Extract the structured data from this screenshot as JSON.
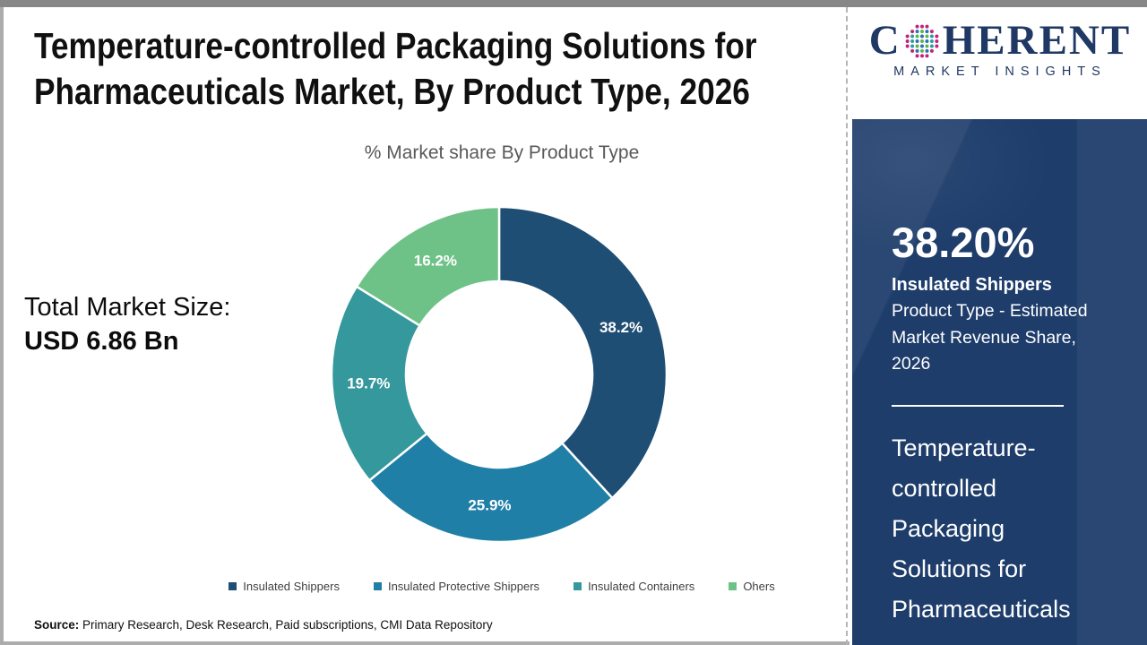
{
  "header": {
    "title_lines": [
      "Temperature-controlled Packaging Solutions for",
      "Pharmaceuticals Market, By Product Type, 2026"
    ],
    "subtitle": "% Market share By Product Type"
  },
  "left_panel": {
    "total_label": "Total Market Size:",
    "total_value": "USD 6.86 Bn"
  },
  "chart_data": {
    "type": "pie",
    "subtype": "donut",
    "title": "% Market share By Product Type",
    "categories": [
      "Insulated Shippers",
      "Insulated Protective Shippers",
      "Insulated Containers",
      "Ohers"
    ],
    "values": [
      38.2,
      25.9,
      19.7,
      16.2
    ],
    "labels": [
      "38.2%",
      "25.9%",
      "19.7%",
      "16.2%"
    ],
    "colors": [
      "#1F4E74",
      "#207FA6",
      "#34989D",
      "#6FC287"
    ],
    "start_angle_deg": 0,
    "direction": "clockwise",
    "legend_position": "bottom",
    "total_market_size": "USD 6.86 Bn"
  },
  "sidebar": {
    "logo": {
      "word_c": "C",
      "word_rest": "HERENT",
      "tagline": "MARKET INSIGHTS",
      "globe_colors": {
        "outer": "#C0237C",
        "mid": "#2E9BA4",
        "inner": "#5FB54D",
        "accent": "#2F6FB2"
      }
    },
    "stat_value": "38.20%",
    "stat_title": "Insulated Shippers",
    "stat_desc": "Product Type - Estimated Market Revenue Share, 2026",
    "panel_title": "Temperature-controlled Packaging Solutions for Pharmaceuticals"
  },
  "footer": {
    "source_label": "Source:",
    "source_text": " Primary Research, Desk Research, Paid subscriptions, CMI Data Repository"
  },
  "theme": {
    "sidebar_bg": "#1E3D6B",
    "logo_navy": "#1F3864",
    "frame_gray": "#878787"
  }
}
